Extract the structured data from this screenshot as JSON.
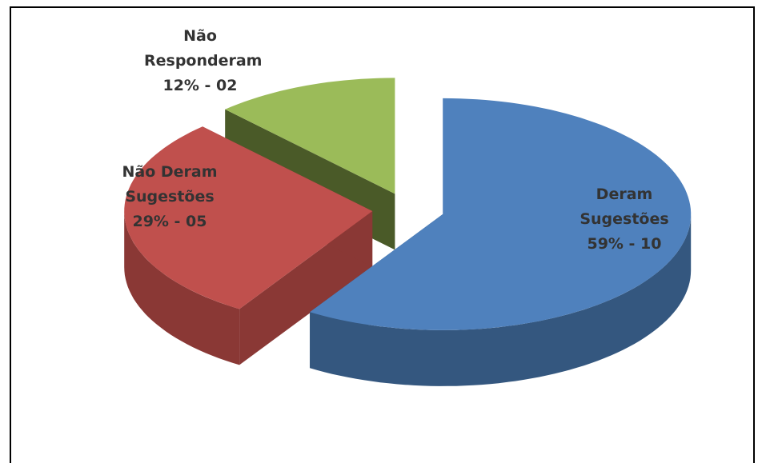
{
  "chart_data": {
    "type": "pie3d",
    "categories": [
      "Deram Sugestões",
      "Não Deram Sugestões",
      "Não Responderam"
    ],
    "values": [
      59,
      29,
      12
    ],
    "value_labels": [
      "59% - 10",
      "29% - 05",
      "12% - 02"
    ],
    "colors": [
      "#4f81bd",
      "#c0504d",
      "#9bbb59"
    ],
    "side_colors": [
      "#34577f",
      "#8a3835",
      "#4a5a28"
    ],
    "exploded": true
  }
}
